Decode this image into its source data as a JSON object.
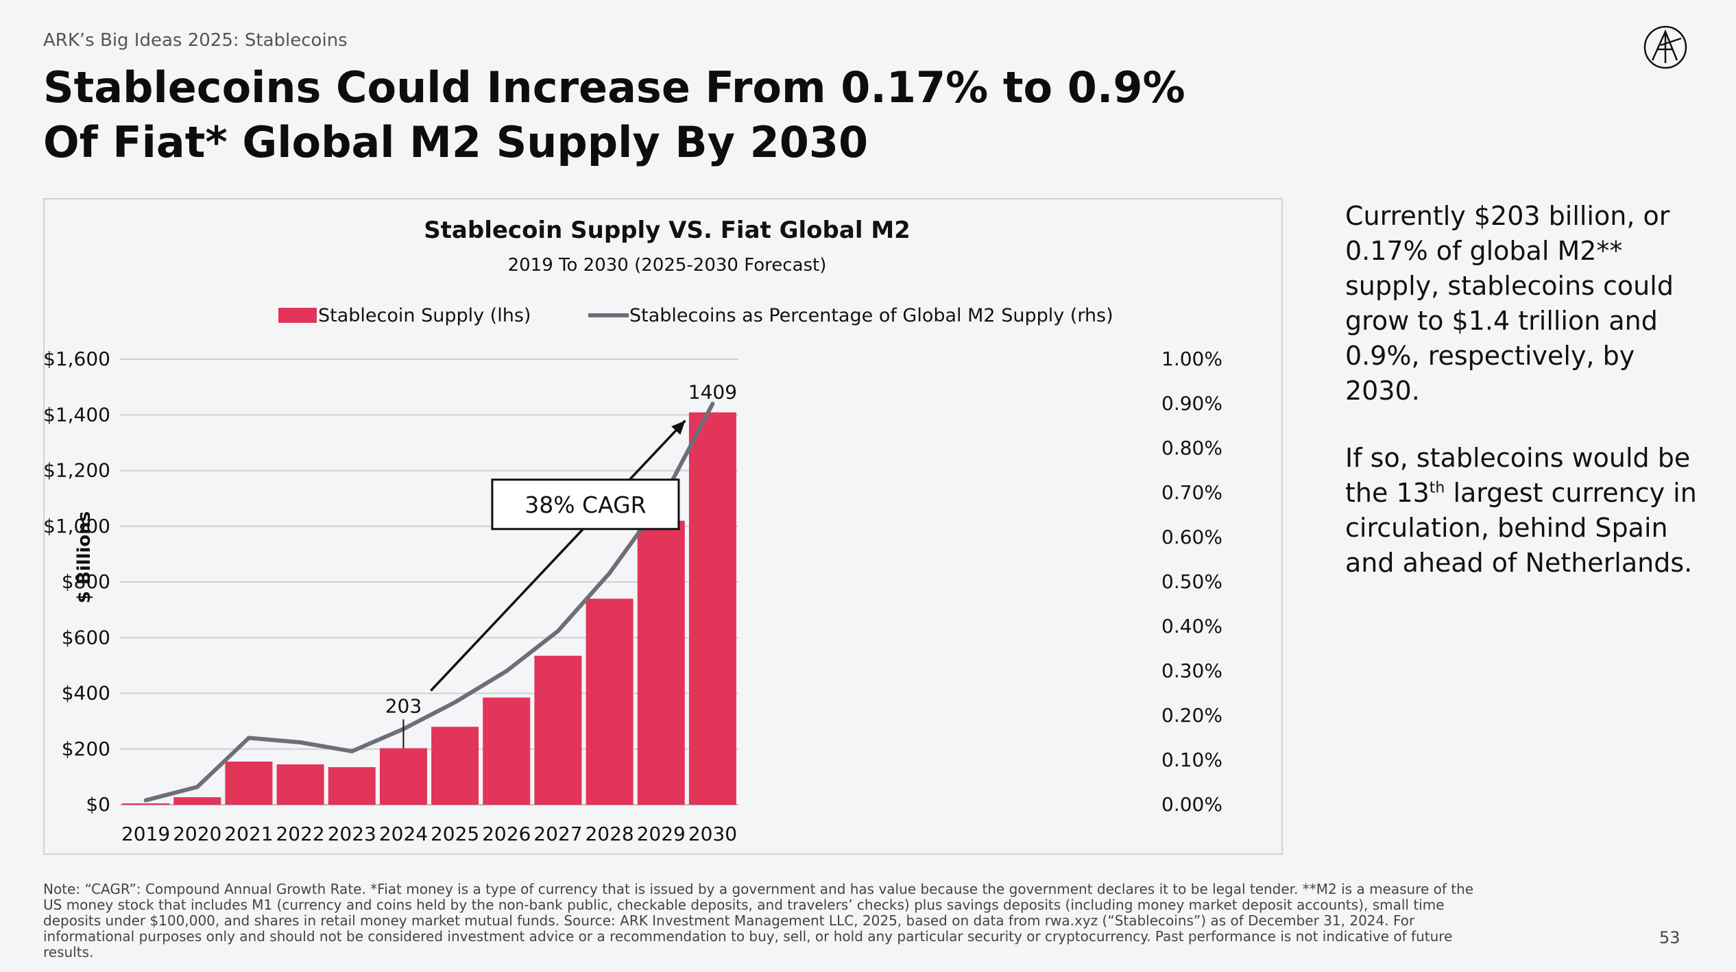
{
  "header": {
    "kicker": "ARK’s Big Ideas 2025: Stablecoins",
    "title": "Stablecoins Could Increase From 0.17% to 0.9% Of Fiat* Global M2 Supply By 2030"
  },
  "colors": {
    "bar": "#e3345a",
    "line": "#6e6e78",
    "grid": "#cfcfcf"
  },
  "chart_data": {
    "type": "bar",
    "title": "Stablecoin Supply VS. Fiat Global M2",
    "subtitle": "2019 To 2030 (2025-2030 Forecast)",
    "ylabel": "$ Billions",
    "categories": [
      "2019",
      "2020",
      "2021",
      "2022",
      "2023",
      "2024",
      "2025",
      "2026",
      "2027",
      "2028",
      "2029",
      "2030"
    ],
    "series": [
      {
        "name": "Stablecoin Supply (lhs)",
        "type": "bar",
        "axis": "left",
        "values": [
          5,
          27,
          155,
          145,
          135,
          203,
          280,
          385,
          535,
          740,
          1020,
          1409
        ]
      },
      {
        "name": "Stablecoins as Percentage of Global M2 Supply (rhs)",
        "type": "line",
        "axis": "right",
        "values": [
          0.01,
          0.04,
          0.15,
          0.14,
          0.12,
          0.17,
          0.23,
          0.3,
          0.39,
          0.52,
          0.68,
          0.9
        ]
      }
    ],
    "ylim_left": [
      0,
      1600
    ],
    "yticks_left": [
      "$0",
      "$200",
      "$400",
      "$600",
      "$800",
      "$1,000",
      "$1,200",
      "$1,400",
      "$1,600"
    ],
    "ylim_right": [
      0,
      1.0
    ],
    "yticks_right": [
      "0.00%",
      "0.10%",
      "0.20%",
      "0.30%",
      "0.40%",
      "0.50%",
      "0.60%",
      "0.70%",
      "0.80%",
      "0.90%",
      "1.00%"
    ],
    "legend_position": "top",
    "grid": true,
    "annotations": {
      "start_label": "203",
      "end_label": "1409",
      "cagr_label": "38% CAGR"
    }
  },
  "side": {
    "p1": "Currently $203 billion, or 0.17% of global M2** supply, stablecoins could grow to $1.4 trillion and 0.9%, respectively, by 2030.",
    "p2_before": "If so, stablecoins would be the 13",
    "p2_sup": "th",
    "p2_after": " largest currency in circulation, behind Spain and ahead of Netherlands."
  },
  "note": "Note: “CAGR”: Compound Annual Growth Rate. *Fiat money is a type of currency that is issued by a government and has value because the government declares it to be legal tender. **M2 is a measure of the US money stock that includes M1 (currency and coins held by the non-bank public, checkable deposits, and travelers’ checks) plus savings deposits (including money market deposit accounts), small time deposits under $100,000, and shares in retail money market mutual funds. Source: ARK Investment Management LLC, 2025, based on data from rwa.xyz (“Stablecoins”) as of December 31, 2024. For informational purposes only and should not be considered investment advice or a recommendation to buy, sell, or hold any particular security or cryptocurrency. Past performance is not indicative of future results.",
  "page_number": "53"
}
